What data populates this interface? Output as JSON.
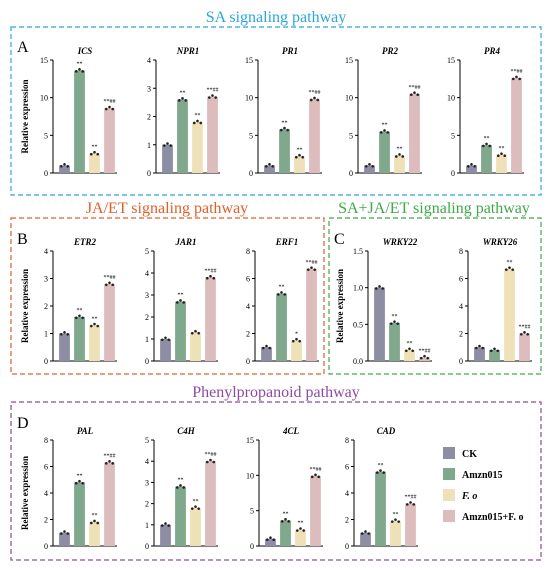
{
  "colors": {
    "ck": "#8d8ea3",
    "amzn": "#7fa88c",
    "fo": "#efe1b7",
    "combo": "#dcbcbc",
    "sa": "#2aa6d8",
    "jaet": "#e0602a",
    "both": "#3fa84a",
    "phenyl": "#8e4aa0"
  },
  "sections": {
    "sa": "SA signaling pathway",
    "jaet": "JA/ET signaling pathway",
    "both": "SA+JA/ET signaling pathway",
    "phenyl": "Phenylpropanoid pathway"
  },
  "panel_letters": [
    "A",
    "B",
    "C",
    "D"
  ],
  "legend": {
    "items": [
      "CK",
      "Amzn015",
      "F. o",
      "Amzn015+F. o"
    ]
  },
  "chart_data": [
    {
      "type": "bar",
      "panel": "A",
      "title": "ICS",
      "ylabel": "Relative expression",
      "ylim": [
        0,
        15
      ],
      "ticks": [
        "0",
        "5",
        "10",
        "15"
      ],
      "categories": [
        "CK",
        "Amzn015",
        "F. o",
        "Amzn015+F. o"
      ],
      "values": [
        1.0,
        13.6,
        2.6,
        8.6
      ],
      "labels": [
        "",
        "**",
        "**",
        "**##"
      ]
    },
    {
      "type": "bar",
      "panel": "A",
      "title": "NPR1",
      "ylabel": "",
      "ylim": [
        0,
        4
      ],
      "ticks": [
        "0",
        "1",
        "2",
        "3",
        "4"
      ],
      "categories": [
        "CK",
        "Amzn015",
        "F. o",
        "Amzn015+F. o"
      ],
      "values": [
        1.0,
        2.6,
        1.8,
        2.7
      ],
      "labels": [
        "",
        "**",
        "**",
        "**##"
      ]
    },
    {
      "type": "bar",
      "panel": "A",
      "title": "PR1",
      "ylabel": "",
      "ylim": [
        0,
        15
      ],
      "ticks": [
        "0",
        "5",
        "10",
        "15"
      ],
      "categories": [
        "CK",
        "Amzn015",
        "F. o",
        "Amzn015+F. o"
      ],
      "values": [
        1.0,
        5.8,
        2.2,
        9.8
      ],
      "labels": [
        "",
        "**",
        "**",
        "**##"
      ]
    },
    {
      "type": "bar",
      "panel": "A",
      "title": "PR2",
      "ylabel": "",
      "ylim": [
        0,
        15
      ],
      "ticks": [
        "0",
        "5",
        "10",
        "15"
      ],
      "categories": [
        "CK",
        "Amzn015",
        "F. o",
        "Amzn015+F. o"
      ],
      "values": [
        1.0,
        5.5,
        2.3,
        10.5
      ],
      "labels": [
        "",
        "**",
        "**",
        "**##"
      ]
    },
    {
      "type": "bar",
      "panel": "A",
      "title": "PR4",
      "ylabel": "",
      "ylim": [
        0,
        15
      ],
      "ticks": [
        "0",
        "5",
        "10",
        "15"
      ],
      "categories": [
        "CK",
        "Amzn015",
        "F. o",
        "Amzn015+F. o"
      ],
      "values": [
        1.0,
        3.7,
        2.4,
        12.6
      ],
      "labels": [
        "",
        "**",
        "**",
        "**##"
      ]
    },
    {
      "type": "bar",
      "panel": "B",
      "title": "ETR2",
      "ylabel": "Relative expression",
      "ylim": [
        0,
        4
      ],
      "ticks": [
        "0",
        "1",
        "2",
        "3",
        "4"
      ],
      "categories": [
        "CK",
        "Amzn015",
        "F. o",
        "Amzn015+F. o"
      ],
      "values": [
        1.0,
        1.6,
        1.3,
        2.8
      ],
      "labels": [
        "",
        "**",
        "**",
        "**##"
      ]
    },
    {
      "type": "bar",
      "panel": "B",
      "title": "JAR1",
      "ylabel": "",
      "ylim": [
        0,
        5
      ],
      "ticks": [
        "0",
        "1",
        "2",
        "3",
        "4",
        "5"
      ],
      "categories": [
        "CK",
        "Amzn015",
        "F. o",
        "Amzn015+F. o"
      ],
      "values": [
        1.0,
        2.7,
        1.3,
        3.8
      ],
      "labels": [
        "",
        "**",
        "",
        "**##"
      ]
    },
    {
      "type": "bar",
      "panel": "B",
      "title": "ERF1",
      "ylabel": "",
      "ylim": [
        0,
        8
      ],
      "ticks": [
        "0",
        "2",
        "4",
        "6",
        "8"
      ],
      "categories": [
        "CK",
        "Amzn015",
        "F. o",
        "Amzn015+F. o"
      ],
      "values": [
        1.0,
        4.9,
        1.5,
        6.7
      ],
      "labels": [
        "",
        "**",
        "*",
        "**##"
      ]
    },
    {
      "type": "bar",
      "panel": "C",
      "title": "WRKY22",
      "ylabel": "Relative expression",
      "ylim": [
        0,
        1.5
      ],
      "ticks": [
        "0.0",
        "0.5",
        "1.0",
        "1.5"
      ],
      "categories": [
        "CK",
        "Amzn015",
        "F. o",
        "Amzn015+F. o"
      ],
      "values": [
        1.0,
        0.52,
        0.15,
        0.05
      ],
      "labels": [
        "",
        "**",
        "**",
        "**##"
      ]
    },
    {
      "type": "bar",
      "panel": "C",
      "title": "WRKY26",
      "ylabel": "",
      "ylim": [
        0,
        8
      ],
      "ticks": [
        "0",
        "2",
        "4",
        "6",
        "8"
      ],
      "categories": [
        "CK",
        "Amzn015",
        "F. o",
        "Amzn015+F. o"
      ],
      "values": [
        1.0,
        0.8,
        6.7,
        2.0
      ],
      "labels": [
        "",
        "",
        "**",
        "**##"
      ]
    },
    {
      "type": "bar",
      "panel": "D",
      "title": "PAL",
      "ylabel": "Relative expression",
      "ylim": [
        0,
        8
      ],
      "ticks": [
        "0",
        "2",
        "4",
        "6",
        "8"
      ],
      "categories": [
        "CK",
        "Amzn015",
        "F. o",
        "Amzn015+F. o"
      ],
      "values": [
        1.0,
        4.8,
        1.8,
        6.3
      ],
      "labels": [
        "",
        "**",
        "**",
        "**##"
      ]
    },
    {
      "type": "bar",
      "panel": "D",
      "title": "C4H",
      "ylabel": "",
      "ylim": [
        0,
        5
      ],
      "ticks": [
        "0",
        "1",
        "2",
        "3",
        "4",
        "5"
      ],
      "categories": [
        "CK",
        "Amzn015",
        "F. o",
        "Amzn015+F. o"
      ],
      "values": [
        1.0,
        2.8,
        1.8,
        4.0
      ],
      "labels": [
        "",
        "**",
        "**",
        "**##"
      ]
    },
    {
      "type": "bar",
      "panel": "D",
      "title": "4CL",
      "ylabel": "",
      "ylim": [
        0,
        15
      ],
      "ticks": [
        "0",
        "5",
        "10",
        "15"
      ],
      "categories": [
        "CK",
        "Amzn015",
        "F. o",
        "Amzn015+F. o"
      ],
      "values": [
        1.0,
        3.6,
        2.3,
        9.9
      ],
      "labels": [
        "",
        "**",
        "**",
        "**##"
      ]
    },
    {
      "type": "bar",
      "panel": "D",
      "title": "CAD",
      "ylabel": "",
      "ylim": [
        0,
        8
      ],
      "ticks": [
        "0",
        "2",
        "4",
        "6",
        "8"
      ],
      "categories": [
        "CK",
        "Amzn015",
        "F. o",
        "Amzn015+F. o"
      ],
      "values": [
        1.0,
        5.6,
        1.9,
        3.2
      ],
      "labels": [
        "",
        "**",
        "**",
        "**##"
      ]
    }
  ]
}
